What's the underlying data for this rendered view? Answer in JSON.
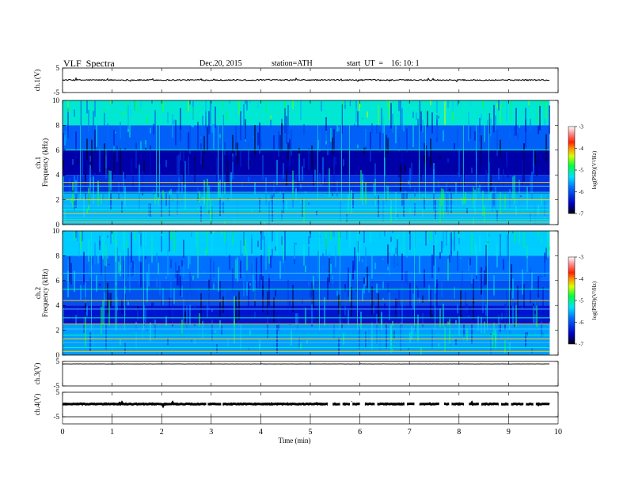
{
  "header": {
    "title": "VLF  Spectra",
    "date": "Dec.20, 2015",
    "station": "station=ATH",
    "start": "start  UT  =    16: 10: 1"
  },
  "chart_data": [
    {
      "type": "line",
      "panel": "ch1-waveform",
      "ylabel": "ch.1(V)",
      "ylim": [
        -5,
        5
      ],
      "yticks": [
        "5",
        "-5"
      ],
      "xlim": [
        0,
        10
      ],
      "data_extent_x": [
        0,
        9.83
      ],
      "approx_level": 0.1,
      "approx_amplitude": 0.5
    },
    {
      "type": "heatmap",
      "panel": "ch1-spectrogram",
      "ylabel_channel": "ch.1",
      "ylabel": "Frequency  (kHz)",
      "ylim": [
        0,
        10
      ],
      "yticks": [
        "0",
        "2",
        "4",
        "6",
        "8",
        "10"
      ],
      "xlim": [
        0,
        10
      ],
      "data_extent_x": [
        0,
        9.83
      ],
      "colorbar": {
        "label": "log(PSD)(V²/Hz)",
        "range": [
          -7,
          -3
        ],
        "ticks": [
          "-3",
          "-4",
          "-5",
          "-6",
          "-7"
        ]
      },
      "description_bands_khz": [
        [
          8,
          10
        ],
        [
          6,
          8
        ],
        [
          4,
          6
        ],
        [
          2.5,
          4
        ],
        [
          0,
          2.5
        ]
      ],
      "band_log_psd": [
        -5.2,
        -5.9,
        -6.6,
        -6.2,
        -5.5
      ],
      "narrowband_lines_khz": [
        0.2,
        0.4,
        0.6,
        0.9,
        1.2,
        1.5,
        2.0,
        2.6,
        3.1,
        3.4,
        6.0
      ]
    },
    {
      "type": "heatmap",
      "panel": "ch2-spectrogram",
      "ylabel_channel": "ch.2",
      "ylabel": "Frequency  (kHz)",
      "ylim": [
        0,
        10
      ],
      "yticks": [
        "0",
        "2",
        "4",
        "6",
        "8",
        "10"
      ],
      "xlim": [
        0,
        10
      ],
      "data_extent_x": [
        0,
        9.83
      ],
      "colorbar": {
        "label": "log(PSD)(V²/Hz)",
        "range": [
          -7,
          -3
        ],
        "ticks": [
          "-3",
          "-4",
          "-5",
          "-6",
          "-7"
        ]
      },
      "description_bands_khz": [
        [
          8,
          10
        ],
        [
          6,
          8
        ],
        [
          4,
          6
        ],
        [
          2.5,
          4
        ],
        [
          0,
          2.5
        ]
      ],
      "band_log_psd": [
        -5.4,
        -5.8,
        -6.0,
        -6.4,
        -5.6
      ],
      "narrowband_lines_khz": [
        0.3,
        0.6,
        1.0,
        1.3,
        1.6,
        2.1,
        2.5,
        3.0,
        3.7,
        4.4,
        5.3,
        6.6
      ]
    },
    {
      "type": "line",
      "panel": "ch3-waveform",
      "ylabel": "ch.3(V)",
      "ylim": [
        -5,
        5
      ],
      "yticks": [
        "5",
        "-5"
      ],
      "xlim": [
        0,
        10
      ],
      "data_extent_x": [
        0,
        9.83
      ],
      "approx_level": 4.0,
      "approx_amplitude": 0.05
    },
    {
      "type": "line",
      "panel": "ch4-waveform",
      "ylabel": "ch.4(V)",
      "ylim": [
        -5,
        5
      ],
      "yticks": [
        "5",
        "-5"
      ],
      "xlim": [
        0,
        10
      ],
      "data_extent_x": [
        0,
        9.83
      ],
      "approx_level": 0.2,
      "approx_amplitude": 0.3,
      "gaps_min": [
        [
          2.9,
          2.93
        ],
        [
          3.2,
          3.23
        ],
        [
          5.35,
          5.45
        ],
        [
          5.6,
          5.65
        ],
        [
          5.8,
          5.85
        ],
        [
          6.0,
          6.1
        ],
        [
          6.3,
          6.35
        ],
        [
          6.9,
          6.95
        ],
        [
          7.1,
          7.2
        ],
        [
          7.6,
          7.7
        ],
        [
          7.8,
          7.85
        ],
        [
          8.1,
          8.2
        ],
        [
          8.4,
          8.45
        ],
        [
          8.8,
          8.85
        ],
        [
          9.0,
          9.05
        ],
        [
          9.3,
          9.35
        ],
        [
          9.5,
          9.55
        ]
      ]
    }
  ],
  "x_axis": {
    "label": "Time  (min)",
    "lim": [
      0,
      10
    ],
    "ticks": [
      "0",
      "1",
      "2",
      "3",
      "4",
      "5",
      "6",
      "7",
      "8",
      "9",
      "10"
    ]
  }
}
